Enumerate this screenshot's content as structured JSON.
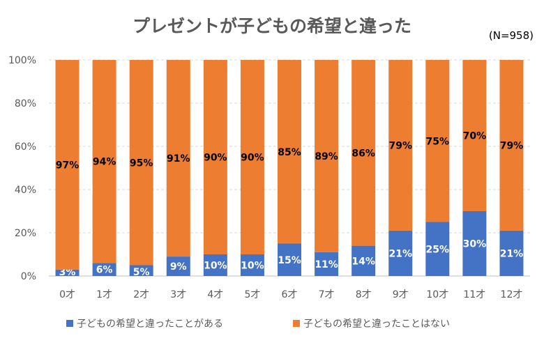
{
  "chart_data": {
    "type": "bar",
    "stacked": true,
    "title": "プレゼントが子どもの希望と違った",
    "annotation": "(N=958)",
    "categories": [
      "0才",
      "1才",
      "2才",
      "3才",
      "4才",
      "5才",
      "6才",
      "7才",
      "8才",
      "9才",
      "10才",
      "11才",
      "12才"
    ],
    "series": [
      {
        "name": "子どもの希望と違ったことがある",
        "color": "#4472C4",
        "values": [
          3,
          6,
          5,
          9,
          10,
          10,
          15,
          11,
          14,
          21,
          25,
          30,
          21
        ]
      },
      {
        "name": "子どもの希望と違ったことはない",
        "color": "#ED7D31",
        "values": [
          97,
          94,
          95,
          91,
          90,
          90,
          85,
          89,
          86,
          79,
          75,
          70,
          79
        ]
      }
    ],
    "ylim": [
      0,
      100
    ],
    "yticks": [
      "0%",
      "20%",
      "40%",
      "60%",
      "80%",
      "100%"
    ],
    "grid": true,
    "legend": "bottom"
  }
}
